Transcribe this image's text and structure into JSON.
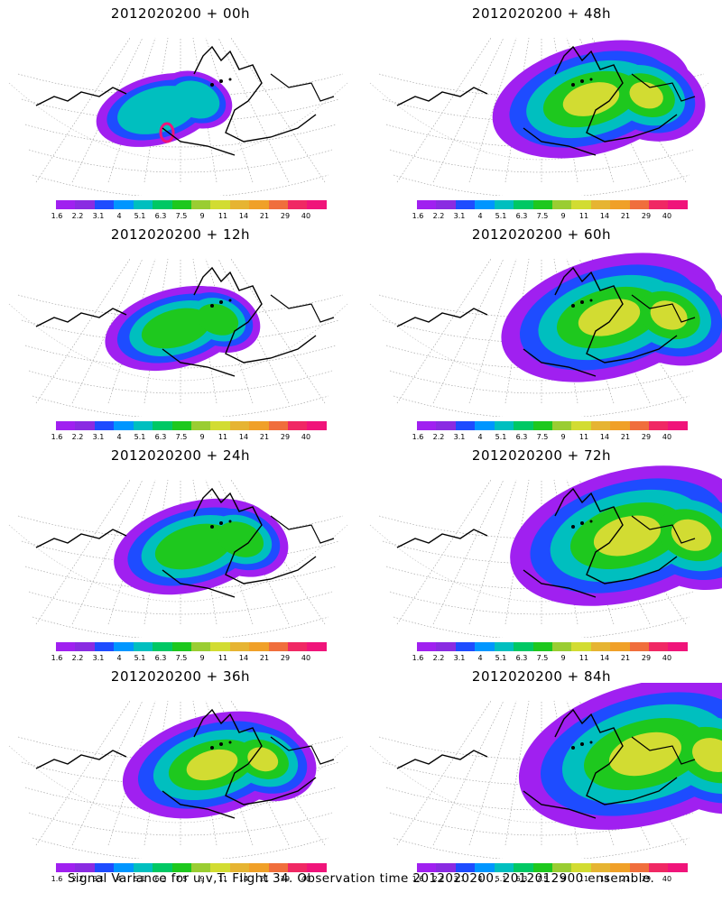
{
  "panels": [
    {
      "title": "2012020200 + 00h",
      "stage": 0
    },
    {
      "title": "2012020200 + 48h",
      "stage": 4
    },
    {
      "title": "2012020200 + 12h",
      "stage": 1
    },
    {
      "title": "2012020200 + 60h",
      "stage": 5
    },
    {
      "title": "2012020200 + 24h",
      "stage": 2
    },
    {
      "title": "2012020200 + 72h",
      "stage": 6
    },
    {
      "title": "2012020200 + 36h",
      "stage": 3
    },
    {
      "title": "2012020200 + 84h",
      "stage": 7
    }
  ],
  "colorbar": {
    "labels": [
      "1.6",
      "2.2",
      "3.1",
      "4",
      "5.1",
      "6.3",
      "7.5",
      "9",
      "11",
      "14",
      "21",
      "29",
      "40"
    ],
    "colors": [
      "#a020f0",
      "#8a2be2",
      "#1e4cff",
      "#0096ff",
      "#00bfbf",
      "#00c864",
      "#1ec81e",
      "#9acd32",
      "#d2dc32",
      "#e6b432",
      "#f0a028",
      "#f06e3c",
      "#f02864",
      "#f0147a"
    ]
  },
  "footer": "Signal Variance for u,v,T. Flight 34. Observation time 2012020200. 2012012900 ensemble."
}
